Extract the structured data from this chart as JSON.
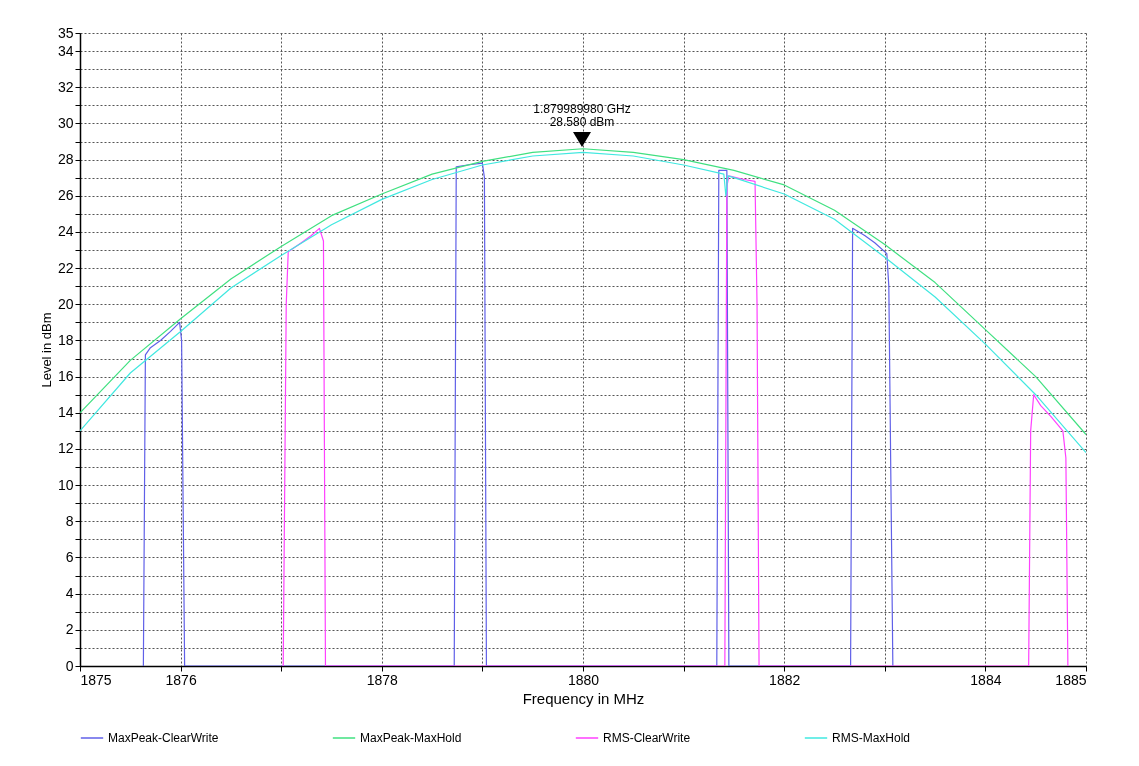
{
  "chart_data": {
    "type": "line",
    "xlabel": "Frequency in MHz",
    "ylabel": "Level in dBm",
    "xlim": [
      1875,
      1885
    ],
    "xticks": [
      1875,
      1876,
      {
        "value": 1877,
        "label": null
      },
      1878,
      {
        "value": 1879,
        "label": null
      },
      1880,
      {
        "value": 1881,
        "label": null
      },
      1882,
      {
        "value": 1883,
        "label": null
      },
      1884,
      1885
    ],
    "ylim": [
      0,
      35
    ],
    "yticks": [
      0,
      {
        "value": 1,
        "label": null
      },
      2,
      {
        "value": 3,
        "label": null
      },
      4,
      {
        "value": 5,
        "label": null
      },
      6,
      {
        "value": 7,
        "label": null
      },
      8,
      {
        "value": 9,
        "label": null
      },
      10,
      {
        "value": 11,
        "label": null
      },
      12,
      {
        "value": 13,
        "label": null
      },
      14,
      {
        "value": 15,
        "label": null
      },
      16,
      {
        "value": 17,
        "label": null
      },
      18,
      {
        "value": 19,
        "label": null
      },
      20,
      {
        "value": 21,
        "label": null
      },
      22,
      {
        "value": 23,
        "label": null
      },
      24,
      {
        "value": 25,
        "label": null
      },
      26,
      {
        "value": 27,
        "label": null
      },
      28,
      {
        "value": 29,
        "label": null
      },
      30,
      {
        "value": 31,
        "label": null
      },
      32,
      {
        "value": 33,
        "label": null
      },
      34,
      35
    ],
    "grid": true,
    "legend": "bottom",
    "line_style": "solid",
    "annotations": [
      {
        "text": "1.879989980 GHz",
        "x": 1879.99,
        "y": 28.58
      },
      {
        "text": "28.580 dBm",
        "x": 1879.99,
        "y": 28.58
      }
    ],
    "series": [
      {
        "name": "MaxPeak-ClearWrite",
        "color": "#6060e8",
        "x": [
          1875.63,
          1875.65,
          1875.7,
          1875.8,
          1875.9,
          1875.99,
          1876.01,
          1876.04,
          1878.72,
          1878.74,
          1878.85,
          1879.0,
          1879.02,
          1879.04,
          1881.33,
          1881.35,
          1881.43,
          1881.45,
          1882.66,
          1882.68,
          1882.8,
          1882.9,
          1883.02,
          1883.04,
          1883.08
        ],
        "values": [
          0,
          17.2,
          17.6,
          18.0,
          18.5,
          19.0,
          18.0,
          0,
          0,
          27.6,
          27.7,
          27.8,
          27.0,
          0,
          0,
          27.4,
          27.4,
          0,
          0,
          24.2,
          23.8,
          23.4,
          22.8,
          21.0,
          0
        ]
      },
      {
        "name": "MaxPeak-MaxHold",
        "color": "#40e080",
        "x": [
          1875,
          1875.5,
          1876,
          1876.5,
          1877,
          1877.5,
          1878,
          1878.5,
          1879,
          1879.5,
          1880,
          1880.5,
          1881,
          1881.5,
          1882,
          1882.5,
          1883,
          1883.5,
          1884,
          1884.5,
          1885
        ],
        "values": [
          14.0,
          16.9,
          19.2,
          21.4,
          23.2,
          24.9,
          26.1,
          27.2,
          27.9,
          28.4,
          28.6,
          28.4,
          28.0,
          27.4,
          26.6,
          25.2,
          23.3,
          21.2,
          18.6,
          16.0,
          12.8
        ]
      },
      {
        "name": "RMS-ClearWrite",
        "color": "#ff40ff",
        "x": [
          1877.02,
          1877.05,
          1877.07,
          1877.2,
          1877.3,
          1877.38,
          1877.42,
          1877.44,
          1881.41,
          1881.43,
          1881.45,
          1881.6,
          1881.71,
          1881.73,
          1881.75,
          1884.43,
          1884.45,
          1884.48,
          1884.55,
          1884.65,
          1884.77,
          1884.8,
          1884.82
        ],
        "values": [
          0,
          20,
          22.9,
          23.4,
          23.8,
          24.2,
          23.5,
          0,
          0,
          26.5,
          27.1,
          26.9,
          26.8,
          20,
          0,
          0,
          13.0,
          15.0,
          14.4,
          13.8,
          13.0,
          11.5,
          0
        ]
      },
      {
        "name": "RMS-MaxHold",
        "color": "#40e8e0",
        "x": [
          1875,
          1875.5,
          1876,
          1876.5,
          1877,
          1877.5,
          1878,
          1878.5,
          1879,
          1879.5,
          1880,
          1880.5,
          1881,
          1881.4,
          1881.42,
          1881.44,
          1881.5,
          1882,
          1882.5,
          1883,
          1883.5,
          1884,
          1884.5,
          1885
        ],
        "values": [
          13.0,
          16.2,
          18.5,
          20.9,
          22.7,
          24.4,
          25.8,
          26.9,
          27.7,
          28.2,
          28.4,
          28.2,
          27.7,
          27.2,
          26.0,
          27.1,
          27.0,
          26.1,
          24.7,
          22.6,
          20.4,
          17.8,
          15.0,
          11.8
        ]
      }
    ]
  }
}
